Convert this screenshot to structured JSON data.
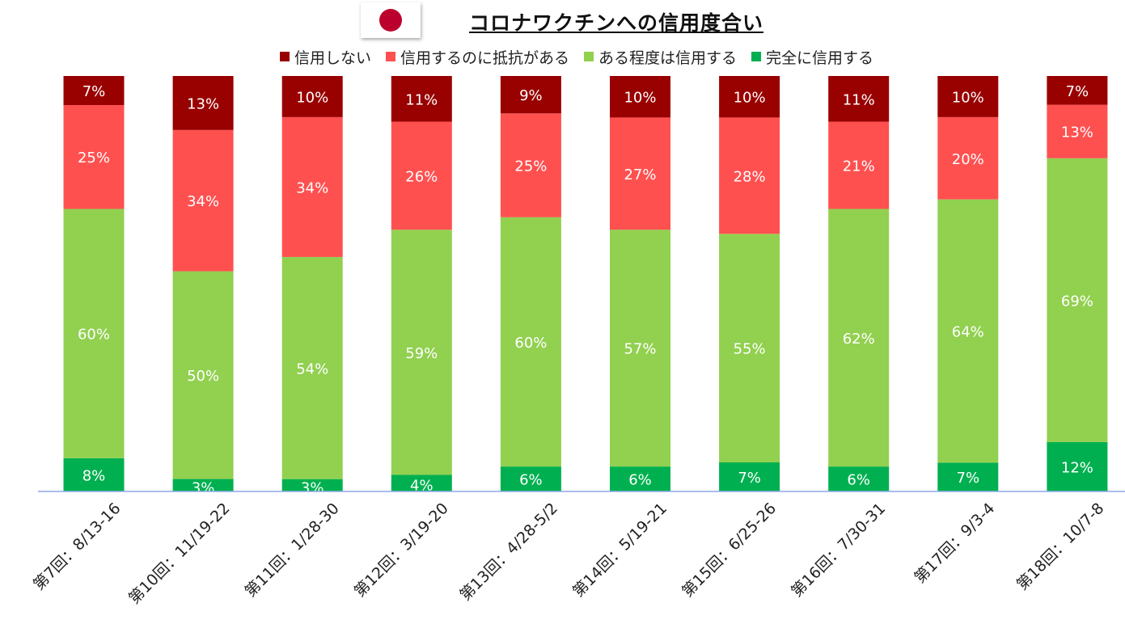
{
  "header": {
    "title": "コロナワクチンへの信用度合い"
  },
  "colors": {
    "trust_none": "#990000",
    "reluctant": "#ff5050",
    "some_trust": "#92d050",
    "full_trust": "#00b050",
    "axis": "#8fa7e8",
    "flag_red": "#bc002d"
  },
  "chart_data": {
    "type": "bar",
    "stacked": true,
    "percent_stacked": true,
    "title": "コロナワクチンへの信用度合い",
    "legend_position": "top",
    "categories": [
      "第7回：8/13-16",
      "第10回：11/19-22",
      "第11回：1/28-30",
      "第12回：3/19-20",
      "第13回：4/28-5/2",
      "第14回：5/19-21",
      "第15回：6/25-26",
      "第16回：7/30-31",
      "第17回：9/3-4",
      "第18回：10/7-8"
    ],
    "series": [
      {
        "name": "完全に信用する",
        "color": "#00b050",
        "values": [
          8,
          3,
          3,
          4,
          6,
          6,
          7,
          6,
          7,
          12
        ]
      },
      {
        "name": "ある程度は信用する",
        "color": "#92d050",
        "values": [
          60,
          50,
          54,
          59,
          60,
          57,
          55,
          62,
          64,
          69
        ]
      },
      {
        "name": "信用するのに抵抗がある",
        "color": "#ff5050",
        "values": [
          25,
          34,
          34,
          26,
          25,
          27,
          28,
          21,
          20,
          13
        ]
      },
      {
        "name": "信用しない",
        "color": "#990000",
        "values": [
          7,
          13,
          10,
          11,
          9,
          10,
          10,
          11,
          10,
          7
        ]
      }
    ],
    "legend_order": [
      "信用しない",
      "信用するのに抵抗がある",
      "ある程度は信用する",
      "完全に信用する"
    ],
    "value_suffix": "%",
    "grid": false
  }
}
